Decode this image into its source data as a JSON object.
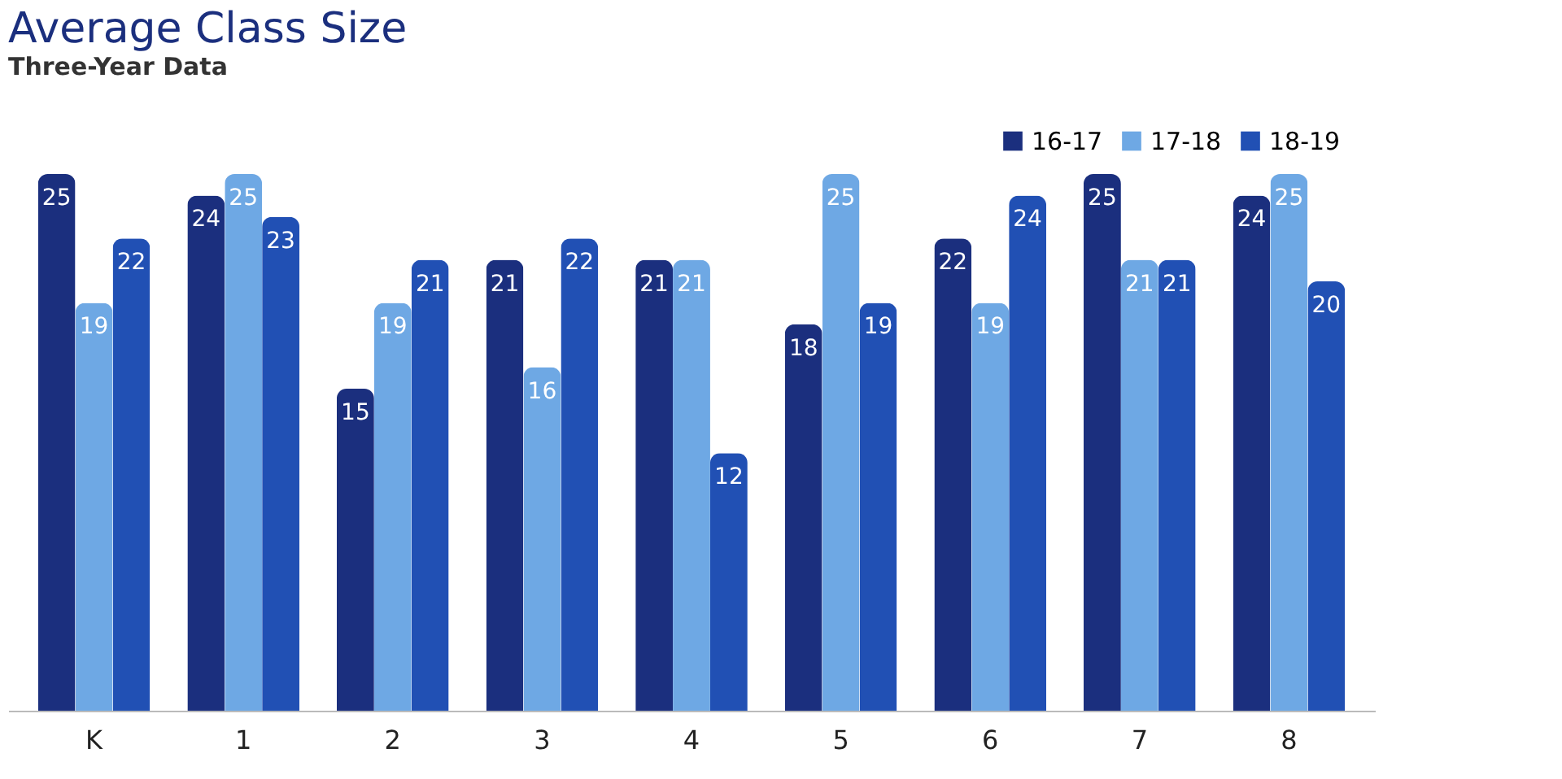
{
  "chart_data": {
    "type": "bar",
    "title": "Average Class Size",
    "subtitle": "Three-Year Data",
    "categories": [
      "K",
      "1",
      "2",
      "3",
      "4",
      "5",
      "6",
      "7",
      "8"
    ],
    "series": [
      {
        "name": "16-17",
        "color": "#1b2f7e",
        "values": [
          25,
          24,
          15,
          21,
          21,
          18,
          22,
          25,
          24
        ]
      },
      {
        "name": "17-18",
        "color": "#6ea8e4",
        "values": [
          19,
          25,
          19,
          16,
          21,
          25,
          19,
          21,
          25
        ]
      },
      {
        "name": "18-19",
        "color": "#2150b4",
        "values": [
          22,
          23,
          21,
          22,
          12,
          19,
          24,
          21,
          20
        ]
      }
    ],
    "data_labels": true,
    "legend": "top right"
  }
}
